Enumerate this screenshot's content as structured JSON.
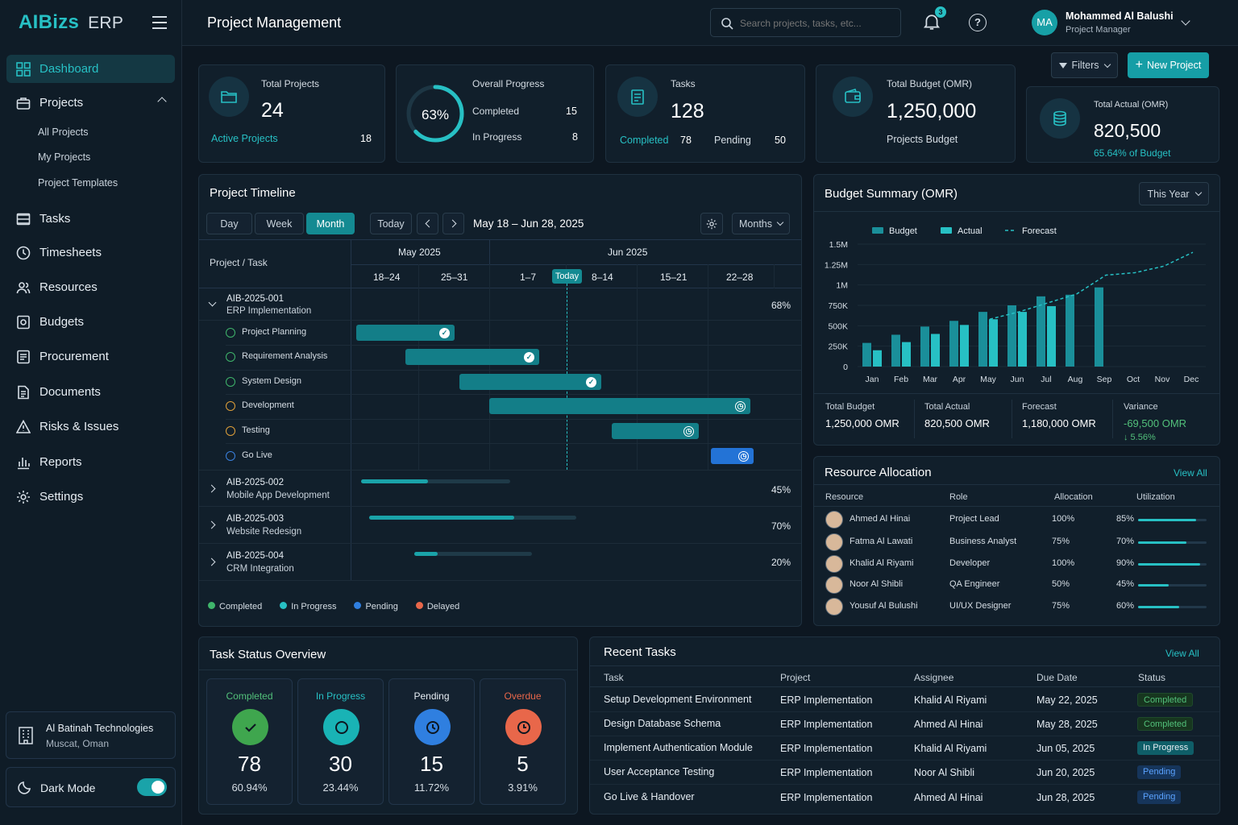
{
  "app": {
    "brand": "AIBizs",
    "brand_suffix": "ERP",
    "page_title": "Project Management"
  },
  "search": {
    "placeholder": "Search projects, tasks, etc..."
  },
  "notifications": {
    "count": "3"
  },
  "user": {
    "initials": "MA",
    "name": "Mohammed Al Balushi",
    "role": "Project Manager"
  },
  "sidebar": {
    "items": [
      {
        "label": "Dashboard",
        "icon": "grid-icon"
      },
      {
        "label": "Projects",
        "icon": "briefcase-icon"
      },
      {
        "label": "Tasks",
        "icon": "list-icon"
      },
      {
        "label": "Timesheets",
        "icon": "clock-icon"
      },
      {
        "label": "Resources",
        "icon": "users-icon"
      },
      {
        "label": "Budgets",
        "icon": "budget-icon"
      },
      {
        "label": "Procurement",
        "icon": "procurement-icon"
      },
      {
        "label": "Documents",
        "icon": "document-icon"
      },
      {
        "label": "Risks & Issues",
        "icon": "warning-icon"
      },
      {
        "label": "Reports",
        "icon": "reports-icon"
      },
      {
        "label": "Settings",
        "icon": "gear-icon"
      }
    ],
    "subitems": [
      "All Projects",
      "My Projects",
      "Project Templates"
    ],
    "company": {
      "name": "Al Batinah Technologies",
      "location": "Muscat, Oman"
    },
    "dark_mode_label": "Dark Mode"
  },
  "toolbar": {
    "filters": "Filters",
    "new_project": "New Project"
  },
  "stats": {
    "total_projects": {
      "label": "Total Projects",
      "value": "24",
      "sub_label": "Active Projects",
      "sub_value": "18"
    },
    "overall_progress": {
      "label": "Overall Progress",
      "percent": "63%",
      "percent_value": 63,
      "completed_label": "Completed",
      "completed": "15",
      "inprogress_label": "In Progress",
      "inprogress": "8"
    },
    "tasks": {
      "label": "Tasks",
      "value": "128",
      "completed_label": "Completed",
      "completed": "78",
      "pending_label": "Pending",
      "pending": "50"
    },
    "budget": {
      "label": "Total Budget (OMR)",
      "value": "1,250,000",
      "sub": "Projects Budget"
    },
    "actual": {
      "label": "Total Actual (OMR)",
      "value": "820,500",
      "sub": "65.64% of Budget"
    }
  },
  "timeline": {
    "title": "Project Timeline",
    "views": [
      "Day",
      "Week",
      "Month"
    ],
    "today_btn": "Today",
    "range": "May 18 – Jun 28, 2025",
    "scale": "Months",
    "col_header": "Project / Task",
    "months": [
      "May 2025",
      "Jun 2025"
    ],
    "weeks": [
      "18–24",
      "25–31",
      "1–7",
      "8–14",
      "15–21",
      "22–28"
    ],
    "today_label": "Today",
    "projects": [
      {
        "code": "AIB-2025-001",
        "name": "ERP Implementation",
        "pct": "68%",
        "progress": 68
      },
      {
        "code": "AIB-2025-002",
        "name": "Mobile App Development",
        "pct": "45%",
        "progress": 45
      },
      {
        "code": "AIB-2025-003",
        "name": "Website Redesign",
        "pct": "70%",
        "progress": 70
      },
      {
        "code": "AIB-2025-004",
        "name": "CRM Integration",
        "pct": "20%",
        "progress": 20
      }
    ],
    "tasks": [
      "Project Planning",
      "Requirement Analysis",
      "System Design",
      "Development",
      "Testing",
      "Go Live"
    ],
    "legend": [
      "Completed",
      "In Progress",
      "Pending",
      "Delayed"
    ],
    "legend_colors": [
      "#3fb56b",
      "#27c0c4",
      "#2f7fe0",
      "#e8674a"
    ]
  },
  "budget_summary": {
    "title": "Budget Summary (OMR)",
    "period": "This Year",
    "totals": [
      {
        "label": "Total Budget",
        "value": "1,250,000 OMR"
      },
      {
        "label": "Total Actual",
        "value": "820,500 OMR"
      },
      {
        "label": "Forecast",
        "value": "1,180,000 OMR"
      },
      {
        "label": "Variance",
        "value": "-69,500 OMR",
        "sub": "↓ 5.56%"
      }
    ]
  },
  "chart_data": {
    "type": "bar",
    "title": "Budget Summary (OMR)",
    "categories": [
      "Jan",
      "Feb",
      "Mar",
      "Apr",
      "May",
      "Jun",
      "Jul",
      "Aug",
      "Sep",
      "Oct",
      "Nov",
      "Dec"
    ],
    "series": [
      {
        "name": "Budget",
        "values": [
          290000,
          390000,
          490000,
          560000,
          670000,
          750000,
          860000,
          880000,
          970000,
          null,
          null,
          null
        ]
      },
      {
        "name": "Actual",
        "values": [
          200000,
          300000,
          400000,
          510000,
          580000,
          670000,
          740000,
          null,
          null,
          null,
          null,
          null
        ]
      },
      {
        "name": "Forecast",
        "type": "line",
        "values": [
          null,
          null,
          null,
          null,
          580000,
          670000,
          780000,
          890000,
          1120000,
          1150000,
          1230000,
          1400000
        ]
      }
    ],
    "ylim": [
      0,
      1500000
    ],
    "yticks": [
      "0",
      "250K",
      "500K",
      "750K",
      "1M",
      "1.25M",
      "1.5M"
    ],
    "legend": "top",
    "colors": {
      "Budget": "#1a8f9a",
      "Actual": "#27c0c4",
      "Forecast": "#27c0c4"
    }
  },
  "resources": {
    "title": "Resource Allocation",
    "view_all": "View All",
    "headers": [
      "Resource",
      "Role",
      "Allocation",
      "Utilization"
    ],
    "rows": [
      {
        "name": "Ahmed Al Hinai",
        "role": "Project Lead",
        "alloc": "100%",
        "util": "85%",
        "util_value": 85
      },
      {
        "name": "Fatma Al Lawati",
        "role": "Business Analyst",
        "alloc": "75%",
        "util": "70%",
        "util_value": 70
      },
      {
        "name": "Khalid Al Riyami",
        "role": "Developer",
        "alloc": "100%",
        "util": "90%",
        "util_value": 90
      },
      {
        "name": "Noor Al Shibli",
        "role": "QA Engineer",
        "alloc": "50%",
        "util": "45%",
        "util_value": 45
      },
      {
        "name": "Yousuf Al Bulushi",
        "role": "UI/UX Designer",
        "alloc": "75%",
        "util": "60%",
        "util_value": 60
      }
    ]
  },
  "task_status": {
    "title": "Task Status Overview",
    "cards": [
      {
        "label": "Completed",
        "value": "78",
        "pct": "60.94%",
        "color": "#52c07a",
        "bg": "#3fa64e"
      },
      {
        "label": "In Progress",
        "value": "30",
        "pct": "23.44%",
        "color": "#27c0c4",
        "bg": "#19b3b5"
      },
      {
        "label": "Pending",
        "value": "15",
        "pct": "11.72%",
        "color": "#e6edf3",
        "bg": "#2f7fe0"
      },
      {
        "label": "Overdue",
        "value": "5",
        "pct": "3.91%",
        "color": "#e8674a",
        "bg": "#e8674a"
      }
    ]
  },
  "recent_tasks": {
    "title": "Recent Tasks",
    "view_all": "View All",
    "headers": [
      "Task",
      "Project",
      "Assignee",
      "Due Date",
      "Status"
    ],
    "rows": [
      {
        "task": "Setup Development Environment",
        "project": "ERP Implementation",
        "assignee": "Khalid Al Riyami",
        "due": "May 22, 2025",
        "status": "Completed"
      },
      {
        "task": "Design Database Schema",
        "project": "ERP Implementation",
        "assignee": "Ahmed Al Hinai",
        "due": "May 28, 2025",
        "status": "Completed"
      },
      {
        "task": "Implement Authentication Module",
        "project": "ERP Implementation",
        "assignee": "Khalid Al Riyami",
        "due": "Jun 05, 2025",
        "status": "In Progress"
      },
      {
        "task": "User Acceptance Testing",
        "project": "ERP Implementation",
        "assignee": "Noor Al Shibli",
        "due": "Jun 20, 2025",
        "status": "Pending"
      },
      {
        "task": "Go Live & Handover",
        "project": "ERP Implementation",
        "assignee": "Ahmed Al Hinai",
        "due": "Jun 28, 2025",
        "status": "Pending"
      }
    ]
  }
}
